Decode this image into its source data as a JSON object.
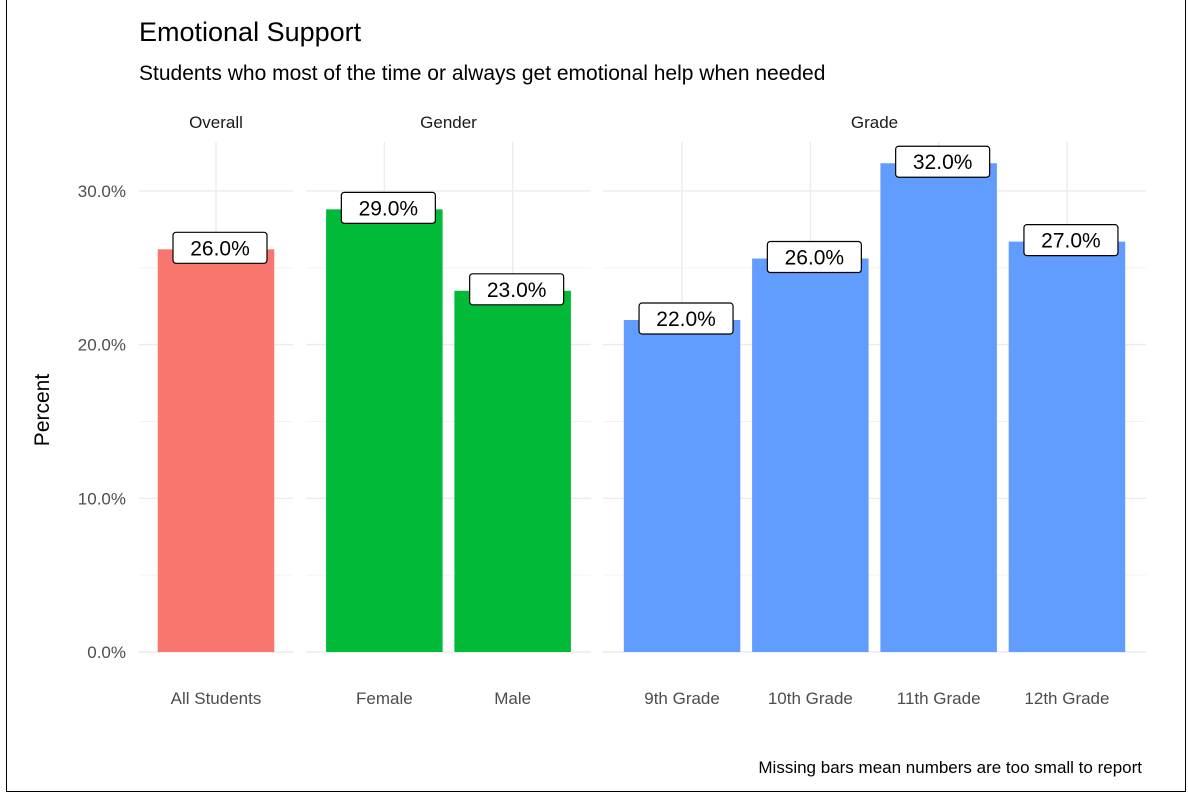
{
  "chart_data": {
    "type": "bar",
    "title": "Emotional Support",
    "subtitle": "Students who most of the time or always get emotional help when needed",
    "ylabel": "Percent",
    "xlabel": "",
    "caption": "Missing bars mean numbers are too small to report",
    "ylim": [
      0,
      32
    ],
    "yticks": [
      {
        "value": 0,
        "label": "0.0%"
      },
      {
        "value": 10,
        "label": "10.0%"
      },
      {
        "value": 20,
        "label": "20.0%"
      },
      {
        "value": 30,
        "label": "30.0%"
      }
    ],
    "grid": true,
    "legend": "none",
    "facets": [
      {
        "name": "Overall",
        "color": "#F8766D",
        "categories": [
          "All Students"
        ],
        "values": [
          26.2
        ],
        "labels": [
          "26.0%"
        ]
      },
      {
        "name": "Gender",
        "color": "#00BA38",
        "categories": [
          "Female",
          "Male"
        ],
        "values": [
          28.8,
          23.5
        ],
        "labels": [
          "29.0%",
          "23.0%"
        ]
      },
      {
        "name": "Grade",
        "color": "#619CFF",
        "categories": [
          "9th Grade",
          "10th Grade",
          "11th Grade",
          "12th Grade"
        ],
        "values": [
          21.6,
          25.6,
          31.8,
          26.7
        ],
        "labels": [
          "22.0%",
          "26.0%",
          "32.0%",
          "27.0%"
        ]
      }
    ]
  }
}
